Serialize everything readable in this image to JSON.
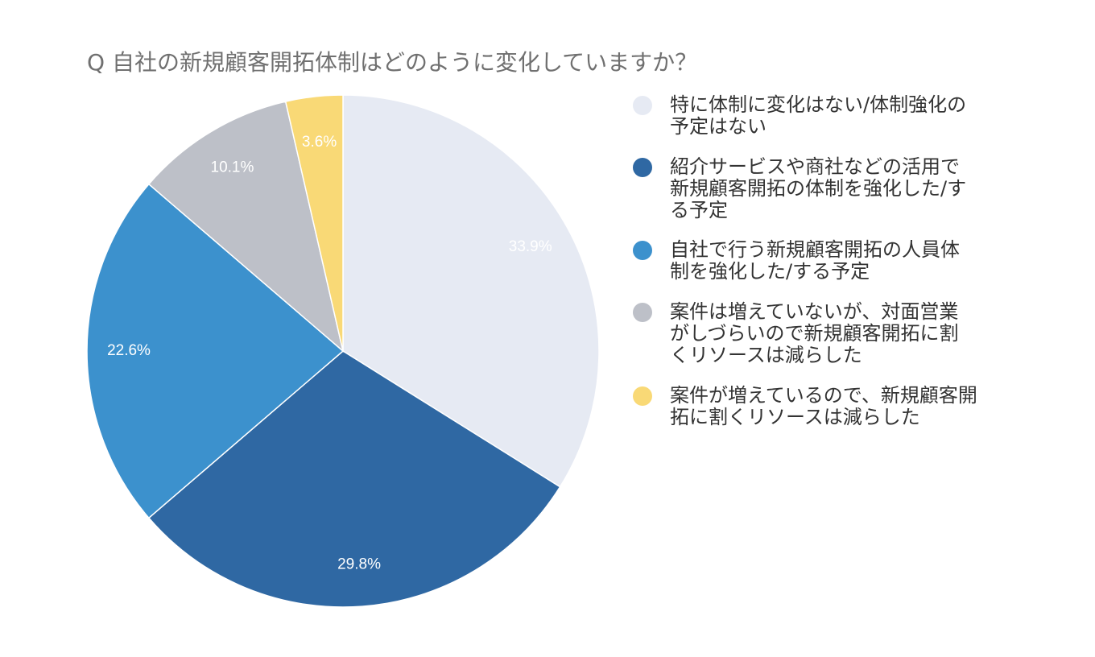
{
  "chart_data": {
    "type": "pie",
    "title": "Q 自社の新規顧客開拓体制はどのように変化していますか？",
    "legend_position": "right",
    "slices": [
      {
        "label": "特に体制に変化はない/体制強化の予定はない",
        "legend_lines": [
          "特に体制に変化はない/体制強化の",
          "予定はない"
        ],
        "value": 33.9,
        "value_label": "33.9%",
        "color": "#E6EAF3"
      },
      {
        "label": "紹介サービスや商社などの活用で新規顧客開拓の体制を強化した/する予定",
        "legend_lines": [
          "紹介サービスや商社などの活用で",
          "新規顧客開拓の体制を強化した/す",
          "る予定"
        ],
        "value": 29.8,
        "value_label": "29.8%",
        "color": "#2F68A3"
      },
      {
        "label": "自社で行う新規顧客開拓の人員体制を強化した/する予定",
        "legend_lines": [
          "自社で行う新規顧客開拓の人員体",
          "制を強化した/する予定"
        ],
        "value": 22.6,
        "value_label": "22.6%",
        "color": "#3C91CD"
      },
      {
        "label": "案件は増えていないが、対面営業がしづらいので新規顧客開拓に割くリソースは減らした",
        "legend_lines": [
          "案件は増えていないが、対面営業",
          "がしづらいので新規顧客開拓に割",
          "くリソースは減らした"
        ],
        "value": 10.1,
        "value_label": "10.1%",
        "color": "#BDC0C8"
      },
      {
        "label": "案件が増えているので、新規顧客開拓に割くリソースは減らした",
        "legend_lines": [
          "案件が増えているので、新規顧客開",
          "拓に割くリソースは減らした"
        ],
        "value": 3.6,
        "value_label": "3.6%",
        "color": "#F9D976"
      }
    ]
  }
}
